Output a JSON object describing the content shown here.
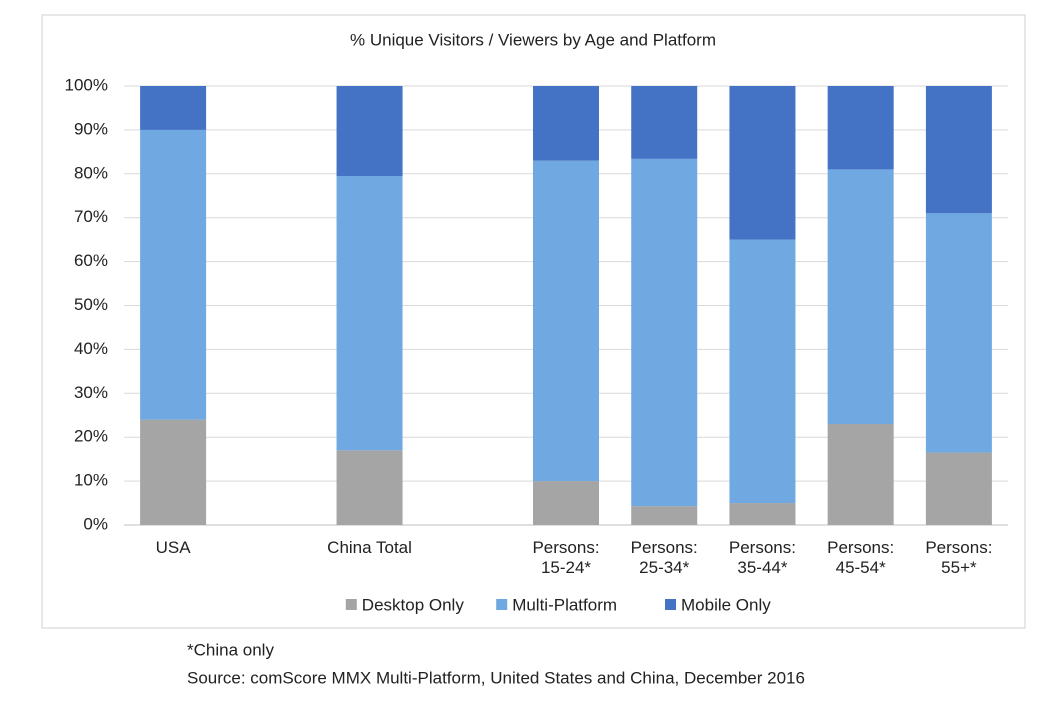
{
  "chart_data": {
    "type": "stacked_bar",
    "title": "% Unique Visitors / Viewers by Age and Platform",
    "categories": [
      "USA",
      null,
      "China Total",
      null,
      "Persons:\n15-24*",
      "Persons:\n25-34*",
      "Persons:\n35-44*",
      "Persons:\n45-54*",
      "Persons:\n55+*"
    ],
    "series": [
      {
        "name": "Desktop Only",
        "color": "#a5a5a5",
        "values": [
          24,
          null,
          17,
          null,
          10,
          4.3,
          5,
          23,
          16.5
        ]
      },
      {
        "name": "Multi-Platform",
        "color": "#70a9e1",
        "values": [
          66,
          null,
          62.5,
          null,
          73,
          79.1,
          60,
          58,
          54.5
        ]
      },
      {
        "name": "Mobile Only",
        "color": "#4472c4",
        "values": [
          10,
          null,
          20.5,
          null,
          17,
          16.6,
          35,
          19,
          29
        ]
      }
    ],
    "ylim": [
      0,
      100
    ],
    "yticks": [
      {
        "value": 0,
        "label": "0%"
      },
      {
        "value": 10,
        "label": "10%"
      },
      {
        "value": 20,
        "label": "20%"
      },
      {
        "value": 30,
        "label": "30%"
      },
      {
        "value": 40,
        "label": "40%"
      },
      {
        "value": 50,
        "label": "50%"
      },
      {
        "value": 60,
        "label": "60%"
      },
      {
        "value": 70,
        "label": "70%"
      },
      {
        "value": 80,
        "label": "80%"
      },
      {
        "value": 90,
        "label": "90%"
      },
      {
        "value": 100,
        "label": "100%"
      }
    ],
    "grid": true,
    "legend": "bottom"
  },
  "notes": [
    "*China only",
    "Source: comScore MMX Multi-Platform, United States and China, December 2016"
  ]
}
